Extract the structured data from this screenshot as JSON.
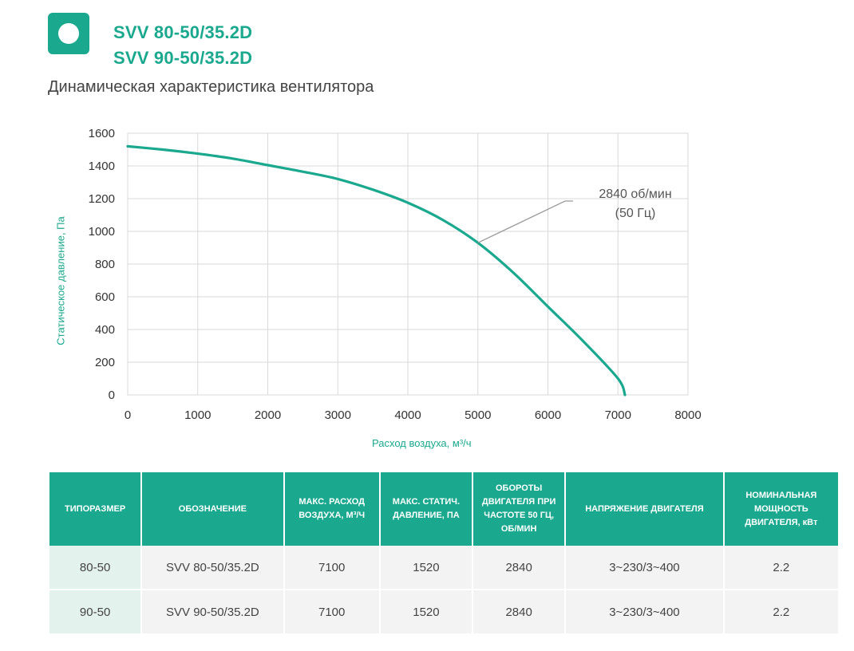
{
  "header": {
    "model_1": "SVV 80-50/35.2D",
    "model_2": "SVV 90-50/35.2D",
    "subtitle": "Динамическая характеристика вентилятора"
  },
  "colors": {
    "accent": "#1aa88e",
    "grid": "#d9d9d9",
    "annotation": "#999999"
  },
  "chart_data": {
    "type": "line",
    "xlabel": "Расход воздуха, м³/ч",
    "ylabel": "Статическое давление, Па",
    "xlim": [
      0,
      8000
    ],
    "ylim": [
      0,
      1600
    ],
    "x_ticks": [
      0,
      1000,
      2000,
      3000,
      4000,
      5000,
      6000,
      7000,
      8000
    ],
    "y_ticks": [
      0,
      200,
      400,
      600,
      800,
      1000,
      1200,
      1400,
      1600
    ],
    "grid": true,
    "series": [
      {
        "name": "2840 об/мин (50 Гц)",
        "color": "#1aa88e",
        "x": [
          0,
          500,
          1000,
          1500,
          2000,
          2500,
          3000,
          3500,
          4000,
          4500,
          5000,
          5500,
          6000,
          6500,
          7000,
          7100
        ],
        "y": [
          1520,
          1500,
          1475,
          1445,
          1405,
          1365,
          1320,
          1255,
          1175,
          1070,
          930,
          750,
          540,
          330,
          100,
          0
        ]
      }
    ],
    "annotations": [
      {
        "text_line_1": "2840 об/мин",
        "text_line_2": "(50 Гц)",
        "point_x": 5000,
        "point_y": 930
      }
    ]
  },
  "table": {
    "headers": [
      "ТИПОРАЗМЕР",
      "ОБОЗНАЧЕНИЕ",
      "МАКС. РАСХОД ВОЗДУХА, М³/Ч",
      "МАКС. СТАТИЧ. ДАВЛЕНИЕ, ПА",
      "ОБОРОТЫ ДВИГАТЕЛЯ ПРИ ЧАСТОТЕ 50 ГЦ, ОБ/МИН",
      "НАПРЯЖЕНИЕ ДВИГАТЕЛЯ",
      "НОМИНАЛЬНАЯ МОЩНОСТЬ ДВИГАТЕЛЯ, кВт"
    ],
    "rows": [
      [
        "80-50",
        "SVV 80-50/35.2D",
        "7100",
        "1520",
        "2840",
        "3~230/3~400",
        "2.2"
      ],
      [
        "90-50",
        "SVV 90-50/35.2D",
        "7100",
        "1520",
        "2840",
        "3~230/3~400",
        "2.2"
      ]
    ]
  }
}
